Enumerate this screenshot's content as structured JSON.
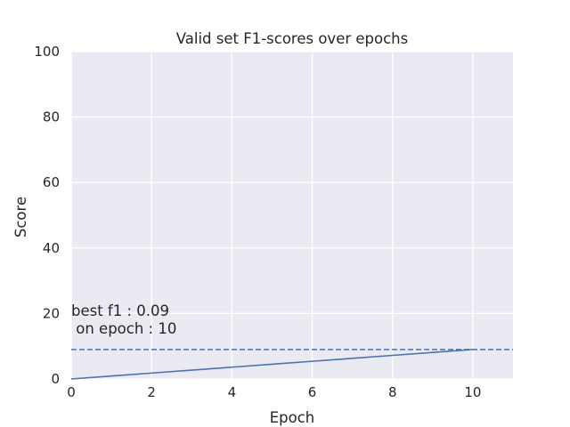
{
  "chart_data": {
    "type": "line",
    "title": "Valid set F1-scores over epochs",
    "xlabel": "Epoch",
    "ylabel": "Score",
    "xlim": [
      0,
      11
    ],
    "ylim": [
      0,
      100
    ],
    "xticks": [
      0,
      2,
      4,
      6,
      8,
      10
    ],
    "yticks": [
      0,
      20,
      40,
      60,
      80,
      100
    ],
    "grid": true,
    "series": [
      {
        "x": [
          0,
          1,
          2,
          3,
          4,
          5,
          6,
          7,
          8,
          9,
          10
        ],
        "values": [
          0,
          0.9,
          1.8,
          2.7,
          3.6,
          4.5,
          5.4,
          6.3,
          7.2,
          8.1,
          9
        ],
        "color": "#4c72b0"
      }
    ],
    "hline": {
      "y": 9,
      "style": "dashed",
      "color": "#4c72b0"
    },
    "annotation": {
      "line1": "best f1 : 0.09",
      "line2": " on epoch : 10",
      "x": 0,
      "y": 16
    },
    "colors": {
      "background": "#eaeaf2",
      "grid": "#ffffff",
      "text": "#262626"
    }
  }
}
